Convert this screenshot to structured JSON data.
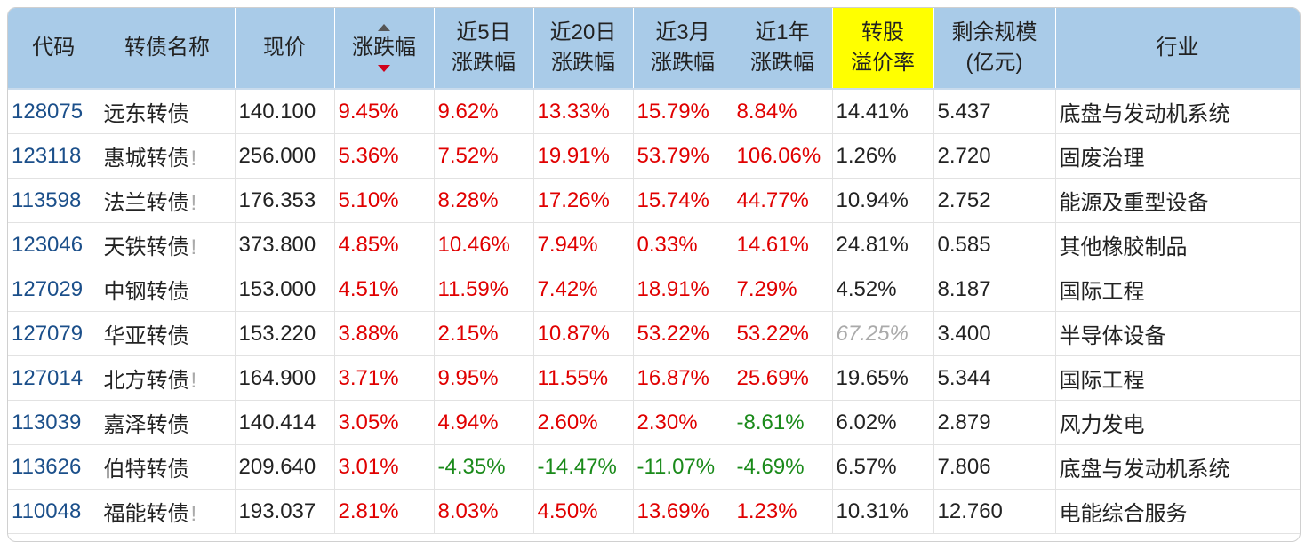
{
  "table": {
    "headers": [
      {
        "key": "code",
        "line1": "代码",
        "line2": ""
      },
      {
        "key": "name",
        "line1": "转债名称",
        "line2": ""
      },
      {
        "key": "price",
        "line1": "现价",
        "line2": ""
      },
      {
        "key": "change",
        "line1": "涨跌幅",
        "line2": ""
      },
      {
        "key": "chg5d",
        "line1": "近5日",
        "line2": "涨跌幅"
      },
      {
        "key": "chg20d",
        "line1": "近20日",
        "line2": "涨跌幅"
      },
      {
        "key": "chg3m",
        "line1": "近3月",
        "line2": "涨跌幅"
      },
      {
        "key": "chg1y",
        "line1": "近1年",
        "line2": "涨跌幅"
      },
      {
        "key": "premium",
        "line1": "转股",
        "line2": "溢价率"
      },
      {
        "key": "scale",
        "line1": "剩余规模",
        "line2": "(亿元)"
      },
      {
        "key": "industry",
        "line1": "行业",
        "line2": ""
      }
    ],
    "highlight_color": "#ffff00",
    "header_color": "#a9cbe8",
    "rows": [
      {
        "code": "128075",
        "name": "远东转债",
        "warn": "",
        "price": "140.100",
        "change": "9.45%",
        "chg5d": "9.62%",
        "chg20d": "13.33%",
        "chg3m": "15.79%",
        "chg1y": "8.84%",
        "premium": "14.41%",
        "scale": "5.437",
        "industry": "底盘与发动机系统"
      },
      {
        "code": "123118",
        "name": "惠城转债",
        "warn": "!",
        "price": "256.000",
        "change": "5.36%",
        "chg5d": "7.52%",
        "chg20d": "19.91%",
        "chg3m": "53.79%",
        "chg1y": "106.06%",
        "premium": "1.26%",
        "scale": "2.720",
        "industry": "固废治理"
      },
      {
        "code": "113598",
        "name": "法兰转债",
        "warn": "!",
        "price": "176.353",
        "change": "5.10%",
        "chg5d": "8.28%",
        "chg20d": "17.26%",
        "chg3m": "15.74%",
        "chg1y": "44.77%",
        "premium": "10.94%",
        "scale": "2.752",
        "industry": "能源及重型设备"
      },
      {
        "code": "123046",
        "name": "天铁转债",
        "warn": "!",
        "price": "373.800",
        "change": "4.85%",
        "chg5d": "10.46%",
        "chg20d": "7.94%",
        "chg3m": "0.33%",
        "chg1y": "14.61%",
        "premium": "24.81%",
        "scale": "0.585",
        "industry": "其他橡胶制品"
      },
      {
        "code": "127029",
        "name": "中钢转债",
        "warn": "",
        "price": "153.000",
        "change": "4.51%",
        "chg5d": "11.59%",
        "chg20d": "7.42%",
        "chg3m": "18.91%",
        "chg1y": "7.29%",
        "premium": "4.52%",
        "scale": "8.187",
        "industry": "国际工程"
      },
      {
        "code": "127079",
        "name": "华亚转债",
        "warn": "",
        "price": "153.220",
        "change": "3.88%",
        "chg5d": "2.15%",
        "chg20d": "10.87%",
        "chg3m": "53.22%",
        "chg1y": "53.22%",
        "premium": "67.25%",
        "premium_grey": true,
        "scale": "3.400",
        "industry": "半导体设备"
      },
      {
        "code": "127014",
        "name": "北方转债",
        "warn": "!",
        "price": "164.900",
        "change": "3.71%",
        "chg5d": "9.95%",
        "chg20d": "11.55%",
        "chg3m": "16.87%",
        "chg1y": "25.69%",
        "premium": "19.65%",
        "scale": "5.344",
        "industry": "国际工程"
      },
      {
        "code": "113039",
        "name": "嘉泽转债",
        "warn": "",
        "price": "140.414",
        "change": "3.05%",
        "chg5d": "4.94%",
        "chg20d": "2.60%",
        "chg3m": "2.30%",
        "chg1y": "-8.61%",
        "premium": "6.02%",
        "scale": "2.879",
        "industry": "风力发电"
      },
      {
        "code": "113626",
        "name": "伯特转债",
        "warn": "",
        "price": "209.640",
        "change": "3.01%",
        "chg5d": "-4.35%",
        "chg20d": "-14.47%",
        "chg3m": "-11.07%",
        "chg1y": "-4.69%",
        "premium": "6.57%",
        "scale": "7.806",
        "industry": "底盘与发动机系统"
      },
      {
        "code": "110048",
        "name": "福能转债",
        "warn": "!",
        "price": "193.037",
        "change": "2.81%",
        "chg5d": "8.03%",
        "chg20d": "4.50%",
        "chg3m": "13.69%",
        "chg1y": "1.23%",
        "premium": "10.31%",
        "scale": "12.760",
        "industry": "电能综合服务"
      }
    ]
  }
}
